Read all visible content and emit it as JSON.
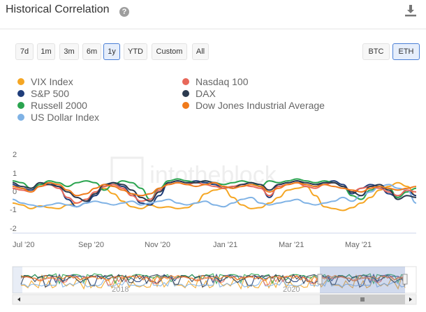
{
  "header": {
    "title": "Historical Correlation",
    "help_icon": "question-circle-icon",
    "download_icon": "download-icon"
  },
  "range_buttons": [
    "7d",
    "1m",
    "3m",
    "6m",
    "1y",
    "YTD",
    "Custom",
    "All"
  ],
  "active_range": "1y",
  "asset_buttons": [
    "BTC",
    "ETH"
  ],
  "active_asset": "ETH",
  "legend": [
    {
      "label": "VIX Index",
      "color": "#f5a623"
    },
    {
      "label": "S&P 500",
      "color": "#1f3d7a"
    },
    {
      "label": "Russell 2000",
      "color": "#2aa44f"
    },
    {
      "label": "US Dollar Index",
      "color": "#7fb2e5"
    },
    {
      "label": "Nasdaq 100",
      "color": "#e8685a"
    },
    {
      "label": "DAX",
      "color": "#2b3a4f"
    },
    {
      "label": "Dow Jones Industrial Average",
      "color": "#f07a1a"
    }
  ],
  "chart_data": {
    "type": "line",
    "y_ticks": [
      "2",
      "1",
      "0",
      "-1",
      "-2"
    ],
    "ylim": [
      -2,
      2
    ],
    "x_ticks": [
      "Jul '20",
      "Sep '20",
      "Nov '20",
      "Jan '21",
      "Mar '21",
      "May '21"
    ],
    "watermark": "intotheblock",
    "navigator_ticks": [
      "2018",
      "2020"
    ],
    "series": [
      {
        "name": "VIX Index",
        "color": "#f5a623",
        "values": [
          -0.6,
          -0.7,
          -0.9,
          -0.75,
          -0.85,
          -0.9,
          -0.7,
          -0.6,
          -0.4,
          -0.1,
          0.2,
          -0.1,
          -0.5,
          -0.8,
          -0.9,
          -0.7,
          -0.85,
          -0.8,
          -0.9,
          -0.85,
          -0.6,
          -0.1,
          0.1,
          0.2,
          -0.3,
          -0.7,
          -0.9,
          -0.85,
          -0.6,
          -0.3,
          0.1,
          0.2,
          0.3,
          -0.2,
          -0.8,
          -0.9,
          -1.0,
          -0.85,
          -0.6,
          -0.3,
          0.1,
          0.3,
          0.5,
          0.3,
          -0.2
        ]
      },
      {
        "name": "S&P 500",
        "color": "#1f3d7a",
        "values": [
          0.4,
          0.2,
          0.1,
          0.4,
          0.5,
          0.3,
          -0.4,
          -0.8,
          -0.6,
          -0.2,
          0.3,
          0.5,
          0.3,
          -0.1,
          -0.6,
          -0.7,
          -0.2,
          0.5,
          0.6,
          0.5,
          0.6,
          0.5,
          0.4,
          0.2,
          0.3,
          0.4,
          0.5,
          0.3,
          -0.3,
          0.4,
          0.5,
          0.6,
          0.4,
          0.3,
          0.5,
          0.6,
          0.4,
          -0.1,
          0.2,
          0.4,
          0.3,
          -0.1,
          -0.3,
          0.1,
          -0.2
        ]
      },
      {
        "name": "Russell 2000",
        "color": "#2aa44f",
        "values": [
          0.6,
          0.5,
          0.2,
          0.4,
          0.6,
          0.5,
          0.3,
          0.5,
          0.6,
          0.5,
          0.1,
          0.4,
          0.6,
          0.5,
          0.2,
          -0.4,
          0.2,
          0.6,
          0.7,
          0.6,
          0.5,
          0.6,
          0.5,
          0.4,
          0.5,
          0.6,
          0.5,
          0.3,
          0.6,
          0.5,
          0.6,
          0.7,
          0.6,
          0.5,
          0.6,
          0.5,
          0.3,
          -0.2,
          -0.4,
          0.1,
          0.3,
          0.2,
          -0.3,
          0.0,
          0.2
        ]
      },
      {
        "name": "US Dollar Index",
        "color": "#7fb2e5",
        "values": [
          -0.4,
          -0.6,
          -0.7,
          -0.8,
          -0.7,
          -0.6,
          -0.7,
          -0.8,
          -0.6,
          -0.5,
          -0.6,
          -0.7,
          -0.6,
          -0.5,
          -0.7,
          -0.6,
          -0.5,
          -0.4,
          -0.6,
          -0.7,
          -0.6,
          -0.5,
          -0.7,
          -0.8,
          -0.6,
          -0.4,
          -0.3,
          -0.6,
          -0.7,
          -0.6,
          -0.5,
          -0.4,
          -0.6,
          -0.7,
          -0.6,
          -0.5,
          -0.3,
          -0.5,
          -0.2,
          0.0,
          0.3,
          0.4,
          0.2,
          0.1,
          -0.6
        ]
      },
      {
        "name": "Nasdaq 100",
        "color": "#e8685a",
        "values": [
          0.2,
          0.1,
          0.0,
          0.3,
          0.4,
          0.2,
          -0.3,
          -0.6,
          -0.4,
          0.0,
          0.3,
          0.4,
          0.2,
          -0.2,
          -0.5,
          -0.4,
          0.1,
          0.4,
          0.5,
          0.4,
          0.5,
          0.4,
          0.3,
          0.2,
          0.3,
          0.4,
          0.3,
          0.2,
          -0.2,
          0.3,
          0.4,
          0.5,
          0.3,
          0.2,
          0.4,
          0.5,
          0.3,
          0.0,
          0.2,
          0.3,
          0.2,
          0.0,
          -0.2,
          0.1,
          0.0
        ]
      },
      {
        "name": "DAX",
        "color": "#2b3a4f",
        "values": [
          0.5,
          0.3,
          0.2,
          0.5,
          0.4,
          0.3,
          0.0,
          -0.3,
          -0.5,
          -0.1,
          0.4,
          0.5,
          0.4,
          0.1,
          -0.3,
          -0.5,
          0.0,
          0.5,
          0.6,
          0.5,
          0.5,
          0.6,
          0.5,
          0.3,
          0.2,
          0.4,
          0.5,
          0.4,
          0.1,
          0.4,
          0.5,
          0.6,
          0.5,
          0.4,
          0.5,
          0.5,
          0.3,
          0.0,
          -0.2,
          0.3,
          0.4,
          0.1,
          -0.4,
          -0.2,
          -0.3
        ]
      },
      {
        "name": "Dow Jones Industrial Average",
        "color": "#f07a1a",
        "values": [
          0.3,
          0.2,
          0.0,
          0.3,
          0.5,
          0.4,
          0.1,
          -0.2,
          -0.1,
          0.2,
          0.4,
          0.3,
          0.1,
          -0.1,
          -0.2,
          -0.1,
          0.2,
          0.4,
          0.5,
          0.4,
          0.3,
          0.4,
          0.5,
          0.3,
          0.2,
          0.3,
          0.4,
          0.3,
          0.0,
          0.2,
          0.4,
          0.5,
          0.4,
          0.3,
          0.4,
          0.3,
          0.2,
          0.1,
          0.0,
          0.2,
          0.3,
          0.2,
          0.1,
          0.2,
          0.3
        ]
      }
    ]
  }
}
